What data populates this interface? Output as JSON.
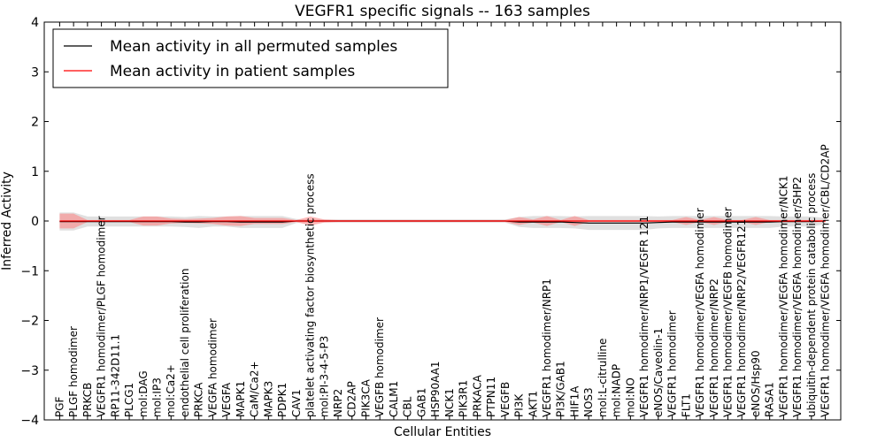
{
  "chart_data": {
    "type": "line",
    "title": "VEGFR1 specific signals -- 163 samples",
    "xlabel": "Cellular Entities",
    "ylabel": "Inferred Activity",
    "ylim": [
      -4,
      4
    ],
    "yticks": [
      -4,
      -3,
      -2,
      -1,
      0,
      1,
      2,
      3,
      4
    ],
    "ytick_labels": [
      "−4",
      "−3",
      "−2",
      "−1",
      "0",
      "1",
      "2",
      "3",
      "4"
    ],
    "legend_position": "upper-left",
    "categories": [
      "PGF",
      "PLGF homodimer",
      "PRKCB",
      "VEGFR1 homodimer/PLGF homodimer",
      "RP11-342D11.1",
      "PLCG1",
      "mol:DAG",
      "mol:IP3",
      "mol:Ca2+",
      "endothelial cell proliferation",
      "PRKCA",
      "VEGFA homodimer",
      "VEGFA",
      "MAPK1",
      "CaM/Ca2+",
      "MAPK3",
      "PDPK1",
      "CAV1",
      "platelet activating factor biosynthetic process",
      "mol:PI-3-4-5-P3",
      "NRP2",
      "CD2AP",
      "PIK3CA",
      "VEGFB homodimer",
      "CALM1",
      "CBL",
      "GAB1",
      "HSP90AA1",
      "NCK1",
      "PIK3R1",
      "PRKACA",
      "PTPN11",
      "VEGFB",
      "PI3K",
      "AKT1",
      "VEGFR1 homodimer/NRP1",
      "PI3K/GAB1",
      "HIF1A",
      "NOS3",
      "mol:L-citrulline",
      "mol:NADP",
      "mol:NO",
      "VEGFR1 homodimer/NRP1/VEGFR 121",
      "eNOS/Caveolin-1",
      "VEGFR1 homodimer",
      "FLT1",
      "VEGFR1 homodimer/VEGFA homodimer",
      "VEGFR1 homodimer/NRP2",
      "VEGFR1 homodimer/VEGFB homodimer",
      "VEGFR1 homodimer/NRP2/VEGFR121",
      "eNOS/Hsp90",
      "RASA1",
      "VEGFR1 homodimer/VEGFA homodimer/NCK1",
      "VEGFR1 homodimer/VEGFA homodimer/SHP2",
      "ubiquitin-dependent protein catabolic process",
      "VEGFR1 homodimer/VEGFA homodimer/CBL/CD2AP"
    ],
    "series": [
      {
        "name": "Mean activity in all permuted samples",
        "color": "#000000",
        "values": [
          -0.01,
          -0.01,
          -0.01,
          -0.01,
          -0.01,
          -0.01,
          -0.01,
          -0.01,
          -0.01,
          -0.02,
          -0.02,
          -0.01,
          -0.01,
          -0.02,
          -0.02,
          -0.02,
          -0.02,
          0.0,
          0.0,
          0.0,
          0.0,
          0.0,
          0.0,
          0.0,
          0.0,
          0.0,
          0.0,
          0.0,
          0.0,
          0.0,
          0.0,
          0.0,
          0.0,
          -0.02,
          -0.02,
          -0.02,
          -0.02,
          -0.03,
          -0.04,
          -0.04,
          -0.04,
          -0.04,
          -0.04,
          -0.03,
          -0.02,
          -0.02,
          -0.02,
          -0.02,
          -0.02,
          -0.02,
          -0.02,
          -0.02,
          -0.01,
          -0.01,
          -0.01,
          0.0
        ],
        "spread": [
          0.18,
          0.18,
          0.1,
          0.1,
          0.1,
          0.1,
          0.1,
          0.1,
          0.1,
          0.1,
          0.12,
          0.1,
          0.1,
          0.12,
          0.12,
          0.12,
          0.12,
          0.04,
          0.03,
          0.03,
          0.03,
          0.03,
          0.03,
          0.03,
          0.03,
          0.03,
          0.03,
          0.03,
          0.03,
          0.03,
          0.03,
          0.03,
          0.03,
          0.1,
          0.12,
          0.12,
          0.12,
          0.12,
          0.14,
          0.14,
          0.14,
          0.14,
          0.14,
          0.12,
          0.12,
          0.12,
          0.12,
          0.12,
          0.12,
          0.12,
          0.12,
          0.12,
          0.1,
          0.1,
          0.1,
          0.06
        ],
        "band_color": "#bbbbbb"
      },
      {
        "name": "Mean activity in patient samples",
        "color": "#ff0000",
        "values": [
          0.0,
          0.0,
          0.0,
          0.0,
          0.0,
          0.0,
          0.0,
          0.0,
          0.0,
          0.0,
          0.0,
          0.0,
          0.0,
          0.0,
          0.0,
          0.0,
          0.0,
          0.0,
          0.0,
          0.0,
          0.0,
          0.0,
          0.0,
          0.0,
          0.0,
          0.0,
          0.0,
          0.0,
          0.0,
          0.0,
          0.0,
          0.0,
          0.0,
          0.0,
          0.0,
          0.0,
          0.0,
          0.0,
          0.0,
          0.0,
          0.0,
          0.0,
          0.0,
          0.0,
          0.0,
          0.0,
          0.0,
          0.0,
          0.0,
          0.0,
          0.0,
          0.0,
          0.0,
          0.0,
          0.0,
          0.0
        ],
        "spread": [
          0.15,
          0.15,
          0.02,
          0.02,
          0.02,
          0.02,
          0.09,
          0.09,
          0.05,
          0.04,
          0.05,
          0.06,
          0.09,
          0.1,
          0.06,
          0.06,
          0.06,
          0.02,
          0.09,
          0.03,
          0.02,
          0.02,
          0.02,
          0.02,
          0.02,
          0.02,
          0.02,
          0.02,
          0.02,
          0.02,
          0.02,
          0.02,
          0.02,
          0.08,
          0.03,
          0.1,
          0.02,
          0.1,
          0.02,
          0.02,
          0.02,
          0.02,
          0.02,
          0.02,
          0.02,
          0.08,
          0.02,
          0.08,
          0.02,
          0.02,
          0.08,
          0.02,
          0.02,
          0.02,
          0.02,
          0.02
        ],
        "band_color": "#ff8080"
      }
    ]
  }
}
